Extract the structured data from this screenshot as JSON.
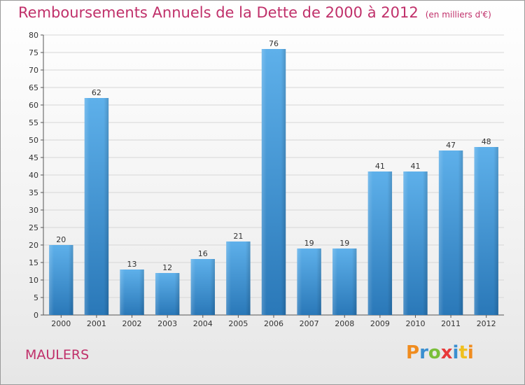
{
  "header": {
    "title": "Remboursements Annuels de la Dette de 2000 à 2012",
    "unit": "(en milliers d'€)"
  },
  "footer": {
    "city": "MAULERS",
    "logo": "Proxiti"
  },
  "colors": {
    "title": "#c0306a",
    "bar_top": "#5eb0ea",
    "bar_bottom": "#2a78b8",
    "grid": "#d6d6d6"
  },
  "chart_data": {
    "type": "bar",
    "title": "Remboursements Annuels de la Dette de 2000 à 2012",
    "subtitle": "(en milliers d'€)",
    "xlabel": "",
    "ylabel": "",
    "categories": [
      "2000",
      "2001",
      "2002",
      "2003",
      "2004",
      "2005",
      "2006",
      "2007",
      "2008",
      "2009",
      "2010",
      "2011",
      "2012"
    ],
    "values": [
      20,
      62,
      13,
      12,
      16,
      21,
      76,
      19,
      19,
      41,
      41,
      47,
      48
    ],
    "ylim": [
      0,
      80
    ],
    "yticks": [
      0,
      5,
      10,
      15,
      20,
      25,
      30,
      35,
      40,
      45,
      50,
      55,
      60,
      65,
      70,
      75,
      80
    ],
    "grid": true,
    "legend": "none"
  }
}
